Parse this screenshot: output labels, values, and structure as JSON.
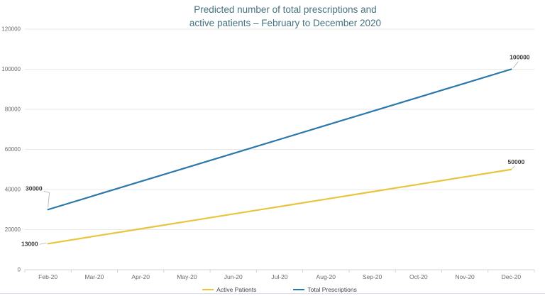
{
  "title": {
    "line1": "Predicted number of total prescriptions and",
    "line2": "active patients – February to December 2020"
  },
  "colors": {
    "title": "#45737f",
    "active_patients": "#e9c43f",
    "total_prescriptions": "#2b77ab",
    "grid": "#e9e9e9",
    "axis_line": "#d4d4d4",
    "axis_text": "#6a6a6a",
    "data_label": "#3a3a3a",
    "leader": "#aeaeae",
    "legend_text": "#444444",
    "bottom_border": "#d7e1ee"
  },
  "chart_data": {
    "type": "line",
    "title": "Predicted number of total prescriptions and active patients – February to December 2020",
    "categories": [
      "Feb-20",
      "Mar-20",
      "Apr-20",
      "May-20",
      "Jun-20",
      "Jul-20",
      "Aug-20",
      "Sep-20",
      "Oct-20",
      "Nov-20",
      "Dec-20"
    ],
    "series": [
      {
        "name": "Active Patients",
        "color_key": "active_patients",
        "values": [
          13000,
          16700,
          20400,
          24100,
          27800,
          31500,
          35200,
          38900,
          42600,
          46300,
          50000
        ],
        "point_labels": {
          "first": "13000",
          "last": "50000"
        }
      },
      {
        "name": "Total Prescriptions",
        "color_key": "total_prescriptions",
        "values": [
          30000,
          37000,
          44000,
          51000,
          58000,
          65000,
          72000,
          79000,
          86000,
          93000,
          100000
        ],
        "point_labels": {
          "first": "30000",
          "last": "100000"
        }
      }
    ],
    "xlabel": "",
    "ylabel": "",
    "ylim": [
      0,
      120000
    ],
    "ytick_step": 20000,
    "ytick_labels": [
      "0",
      "20000",
      "40000",
      "60000",
      "80000",
      "100000",
      "120000"
    ],
    "grid": true,
    "legend_position": "bottom"
  }
}
